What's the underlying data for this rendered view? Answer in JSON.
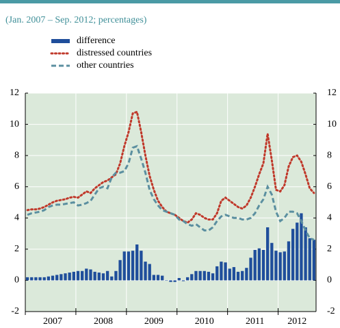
{
  "chart_data": {
    "type": "combo",
    "subtitle": "(Jan. 2007 – Sep. 2012; percentages)",
    "categories": [
      null,
      null,
      null,
      null,
      null,
      null,
      "2007",
      null,
      null,
      null,
      null,
      null,
      null,
      null,
      null,
      null,
      null,
      null,
      "2008",
      null,
      null,
      null,
      null,
      null,
      null,
      null,
      null,
      null,
      null,
      null,
      "2009",
      null,
      null,
      null,
      null,
      null,
      null,
      null,
      null,
      null,
      null,
      null,
      "2010",
      null,
      null,
      null,
      null,
      null,
      null,
      null,
      null,
      null,
      null,
      null,
      "2011",
      null,
      null,
      null,
      null,
      null,
      null,
      null,
      null,
      null,
      "2012",
      null,
      null,
      null,
      null
    ],
    "series": [
      {
        "name": "difference",
        "type": "bar",
        "color": "#1f4e9b",
        "values": [
          0.2,
          0.2,
          0.2,
          0.2,
          0.2,
          0.25,
          0.3,
          0.35,
          0.4,
          0.45,
          0.5,
          0.55,
          0.6,
          0.6,
          0.75,
          0.7,
          0.55,
          0.5,
          0.45,
          0.6,
          0.25,
          0.6,
          1.3,
          1.85,
          1.85,
          1.9,
          2.3,
          1.9,
          1.2,
          1.05,
          0.35,
          0.35,
          0.3,
          0.0,
          -0.1,
          -0.1,
          0.15,
          -0.05,
          0.2,
          0.4,
          0.6,
          0.6,
          0.6,
          0.55,
          0.45,
          0.9,
          1.2,
          1.15,
          0.75,
          0.85,
          0.55,
          0.6,
          0.8,
          1.45,
          1.95,
          2.05,
          1.95,
          3.4,
          2.4,
          1.9,
          1.8,
          1.85,
          2.5,
          3.3,
          3.7,
          4.3,
          3.4,
          2.7,
          2.6
        ]
      },
      {
        "name": "distressed countries",
        "type": "line",
        "style": "dotted",
        "color": "#c0392b",
        "values": [
          4.5,
          4.55,
          4.55,
          4.6,
          4.7,
          4.85,
          5.0,
          5.1,
          5.15,
          5.2,
          5.3,
          5.35,
          5.3,
          5.5,
          5.7,
          5.6,
          5.9,
          6.1,
          6.3,
          6.4,
          6.6,
          6.8,
          7.5,
          8.6,
          9.5,
          10.7,
          10.8,
          9.5,
          8.0,
          6.7,
          5.8,
          5.1,
          4.7,
          4.4,
          4.3,
          4.2,
          4.0,
          3.8,
          3.7,
          3.9,
          4.3,
          4.2,
          4.0,
          3.9,
          3.9,
          4.3,
          5.1,
          5.3,
          5.1,
          4.9,
          4.7,
          4.6,
          4.8,
          5.3,
          6.0,
          6.8,
          7.5,
          9.4,
          7.7,
          5.8,
          5.7,
          6.1,
          7.3,
          7.9,
          8.0,
          7.6,
          6.8,
          5.9,
          5.6
        ]
      },
      {
        "name": "other countries",
        "type": "line",
        "style": "dashed",
        "color": "#5b8fa0",
        "values": [
          4.2,
          4.3,
          4.35,
          4.4,
          4.5,
          4.7,
          4.8,
          4.85,
          4.85,
          4.9,
          4.95,
          5.0,
          4.8,
          4.85,
          4.95,
          5.1,
          5.5,
          5.9,
          6.0,
          5.9,
          6.6,
          6.9,
          6.9,
          7.0,
          7.5,
          8.5,
          8.6,
          7.8,
          6.9,
          5.8,
          5.2,
          4.8,
          4.5,
          4.4,
          4.3,
          4.2,
          3.9,
          3.8,
          3.6,
          3.5,
          3.6,
          3.4,
          3.2,
          3.2,
          3.4,
          3.8,
          4.1,
          4.2,
          4.1,
          4.0,
          4.0,
          3.9,
          3.9,
          4.0,
          4.3,
          4.8,
          5.2,
          6.0,
          5.5,
          4.4,
          3.8,
          4.0,
          4.4,
          4.4,
          4.3,
          3.8,
          3.2,
          2.7,
          2.6
        ]
      }
    ],
    "ylim": [
      -2,
      12
    ],
    "yticks": [
      -2,
      0,
      2,
      4,
      6,
      8,
      10,
      12
    ],
    "grid": true
  }
}
